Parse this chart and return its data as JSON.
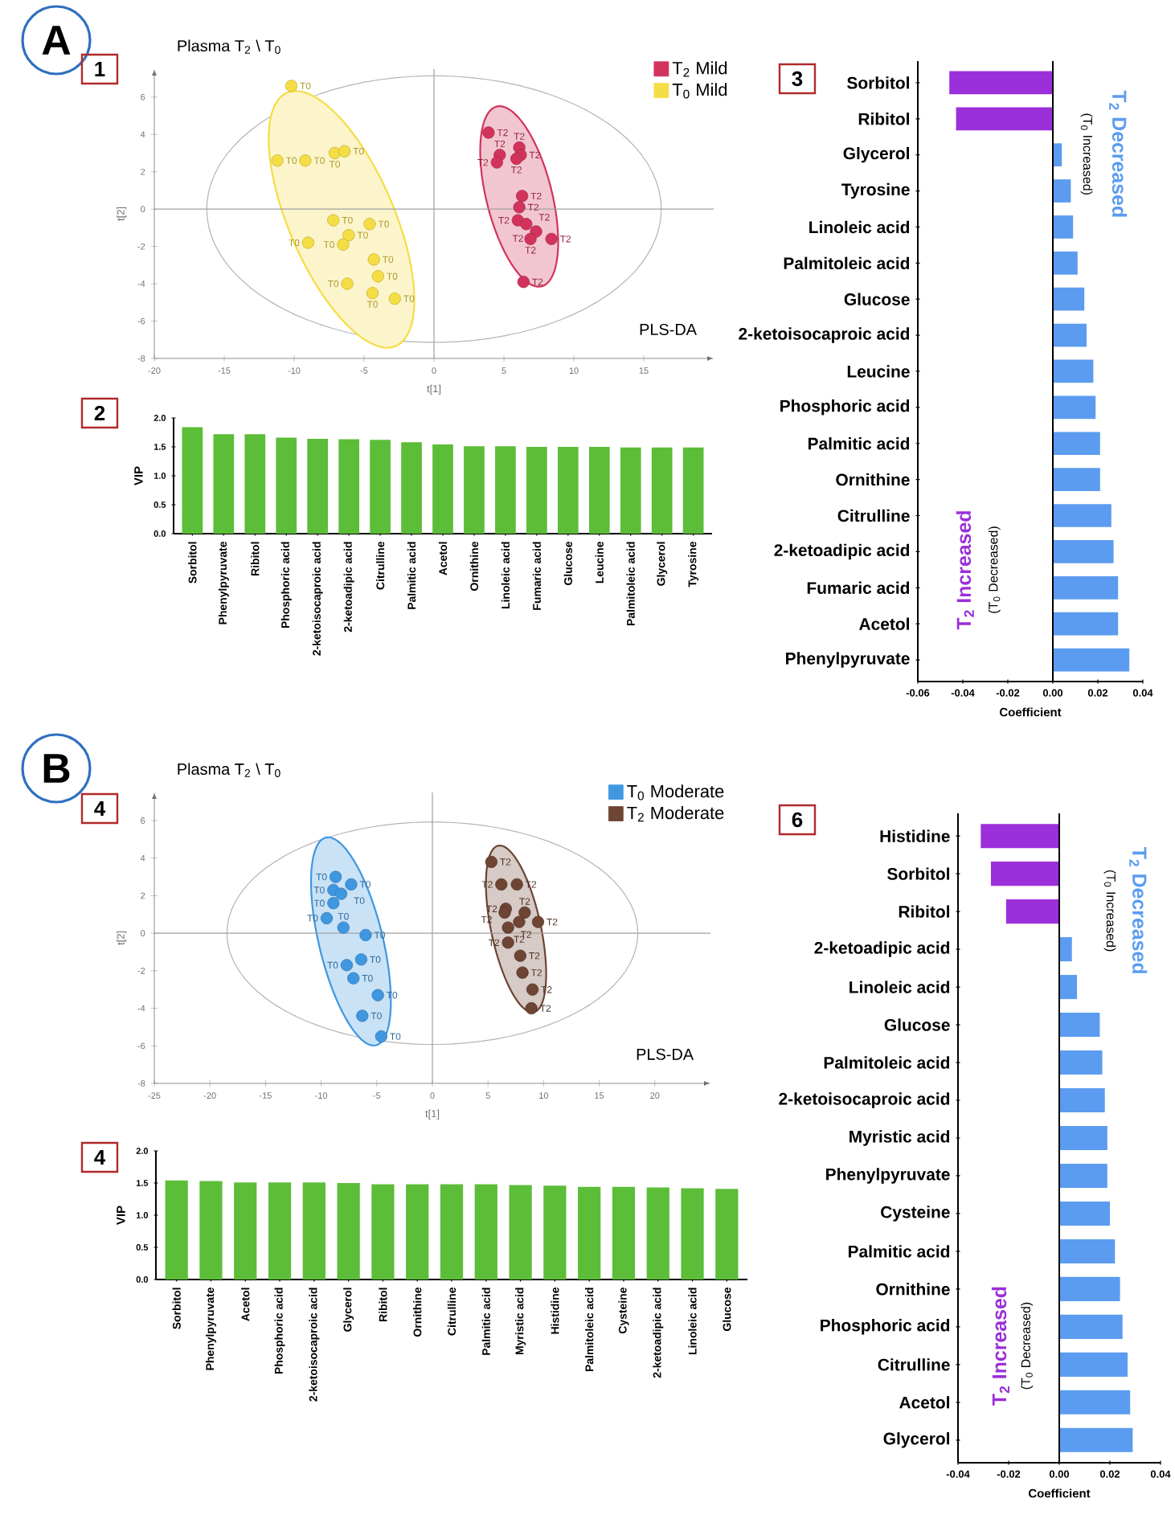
{
  "chart_data": [
    {
      "type": "scatter",
      "title": "Plasma T$_{2}$ \\ T$_{0}$",
      "xlabel": "t[1]",
      "ylabel": "t[2]",
      "xlim": [
        -20,
        20
      ],
      "ylim": [
        -8,
        7.5
      ],
      "xticks": [
        -20,
        -15,
        -10,
        -5,
        0,
        5,
        10,
        15
      ],
      "yticks": [
        -8,
        -6,
        -4,
        -2,
        0,
        2,
        4,
        6
      ],
      "legend": "top right",
      "ref_lines": [
        {
          "axis": "x",
          "value": 0,
          "color": "#a0a0a0"
        },
        {
          "axis": "y",
          "value": 0,
          "color": "#a0a0a0"
        }
      ],
      "annotations": [
        "A",
        "1",
        "PLS-DA"
      ],
      "series": [
        {
          "name": "T$_{2}$ Mild",
          "color": "#d2335c",
          "x": [
            3.9,
            4.7,
            4.5,
            6.1,
            6.2,
            5.9,
            6.3,
            6.1,
            6.0,
            6.6,
            7.3,
            6.9,
            8.4,
            6.4
          ],
          "values": [
            4.1,
            2.9,
            2.5,
            3.3,
            2.9,
            2.7,
            0.7,
            0.1,
            -0.6,
            -0.8,
            -1.2,
            -1.6,
            -1.6,
            -3.9
          ],
          "value_labels": [
            "T2",
            "T2",
            "T2",
            "T2",
            "T2",
            "T2",
            "T2",
            "T2",
            "T2",
            "T2",
            "T2",
            "T2",
            "T2",
            "T2"
          ]
        },
        {
          "name": "T$_{0}$ Mild",
          "color": "#f5dd45",
          "x": [
            -10.2,
            -11.2,
            -9.2,
            -7.1,
            -6.4,
            -7.2,
            -4.6,
            -6.1,
            -6.5,
            -9.0,
            -4.3,
            -4.0,
            -6.2,
            -4.4,
            -2.8
          ],
          "values": [
            6.6,
            2.6,
            2.6,
            3.0,
            3.1,
            -0.6,
            -0.8,
            -1.4,
            -1.9,
            -1.8,
            -2.7,
            -3.6,
            -4.0,
            -4.5,
            -4.8
          ],
          "value_labels": [
            "T0",
            "T0",
            "T0",
            "T0",
            "T0",
            "T0",
            "T0",
            "T0",
            "T0",
            "T0",
            "T0",
            "T0",
            "T0",
            "T0",
            "T0"
          ]
        }
      ]
    },
    {
      "type": "bar",
      "ylabel": "VIP",
      "categories": [
        "Sorbitol",
        "Phenylpyruvate",
        "Ribitol",
        "Phosphoric acid",
        "2-ketoisocaproic acid",
        "2-ketoadipic acid",
        "Citrulline",
        "Palmitic acid",
        "Acetol",
        "Ornithine",
        "Linoleic acid",
        "Fumaric acid",
        "Glucose",
        "Leucine",
        "Palmitoleic acid",
        "Glycerol",
        "Tyrosine"
      ],
      "values": [
        1.84,
        1.72,
        1.72,
        1.66,
        1.64,
        1.63,
        1.62,
        1.58,
        1.54,
        1.51,
        1.51,
        1.5,
        1.5,
        1.5,
        1.49,
        1.49,
        1.49
      ],
      "color": "#5cbd38",
      "ylim": [
        0,
        2
      ],
      "yticks": [
        {
          "value": 0,
          "label": "0.0"
        },
        0.5,
        {
          "value": 1,
          "label": "1.0"
        },
        1.5,
        {
          "value": 2,
          "label": "2.0"
        }
      ],
      "annotations": [
        "2"
      ]
    },
    {
      "type": "bar",
      "orientation": "horizontal",
      "xlabel": "Coefficient",
      "categories": [
        "Sorbitol",
        "Ribitol",
        "Glycerol",
        "Tyrosine",
        "Linoleic acid",
        "Palmitoleic acid",
        "Glucose",
        "2-ketoisocaproic acid",
        "Leucine",
        "Phosphoric acid",
        "Palmitic acid",
        "Ornithine",
        "Citrulline",
        "2-ketoadipic acid",
        "Fumaric acid",
        "Acetol",
        "Phenylpyruvate"
      ],
      "values": [
        -0.046,
        -0.043,
        0.004,
        0.008,
        0.009,
        0.011,
        0.014,
        0.015,
        0.018,
        0.019,
        0.021,
        0.021,
        0.026,
        0.027,
        0.029,
        0.029,
        0.034
      ],
      "colors": [
        "#9b2fd9",
        "#9b2fd9",
        "#5b9cf0",
        "#5b9cf0",
        "#5b9cf0",
        "#5b9cf0",
        "#5b9cf0",
        "#5b9cf0",
        "#5b9cf0",
        "#5b9cf0",
        "#5b9cf0",
        "#5b9cf0",
        "#5b9cf0",
        "#5b9cf0",
        "#5b9cf0",
        "#5b9cf0",
        "#5b9cf0"
      ],
      "xlim": [
        -0.06,
        0.04
      ],
      "xticks": [
        -0.06,
        -0.04,
        -0.02,
        {
          "value": 0,
          "label": "0.00"
        },
        0.02,
        0.04
      ],
      "ref_lines": [
        {
          "axis": "x",
          "value": 0,
          "color": "#000000"
        }
      ],
      "annotations": [
        "3",
        "T$_{2}$ Decreased",
        "(T$_{0}$ Increased)",
        "T$_{2}$ Increased",
        "(T$_{0}$ Decreased)"
      ]
    },
    {
      "type": "scatter",
      "title": "Plasma T$_{2}$ \\ T$_{0}$",
      "xlabel": "t[1]",
      "ylabel": "t[2]",
      "xlim": [
        -25,
        25
      ],
      "ylim": [
        -8,
        7.5
      ],
      "xticks": [
        -25,
        -20,
        -15,
        -10,
        -5,
        0,
        5,
        10,
        15,
        20
      ],
      "yticks": [
        -8,
        -6,
        -4,
        -2,
        0,
        2,
        4,
        6
      ],
      "legend": "top right",
      "ref_lines": [
        {
          "axis": "x",
          "value": 0,
          "color": "#a0a0a0"
        },
        {
          "axis": "y",
          "value": 0,
          "color": "#a0a0a0"
        }
      ],
      "annotations": [
        "B",
        "4",
        "PLS-DA"
      ],
      "series": [
        {
          "name": "T$_{0}$ Moderate",
          "color": "#3f97e0",
          "x": [
            -8.7,
            -7.3,
            -8.9,
            -8.2,
            -8.9,
            -9.5,
            -8.0,
            -6.0,
            -6.4,
            -7.7,
            -7.1,
            -4.9,
            -6.3,
            -4.6
          ],
          "values": [
            3.0,
            2.6,
            2.3,
            2.1,
            1.6,
            0.8,
            0.3,
            -0.1,
            -1.4,
            -1.7,
            -2.4,
            -3.3,
            -4.4,
            -5.5
          ],
          "value_labels": [
            "T0",
            "T0",
            "T0",
            "T0",
            "T0",
            "T0",
            "T0",
            "T0",
            "T0",
            "T0",
            "T0",
            "T0",
            "T0",
            "T0"
          ]
        },
        {
          "name": "T$_{2}$ Moderate",
          "color": "#6e4433",
          "x": [
            5.3,
            6.2,
            7.6,
            6.6,
            6.5,
            8.3,
            6.8,
            7.8,
            9.5,
            6.8,
            7.9,
            8.1,
            9.0,
            8.9
          ],
          "values": [
            3.8,
            2.6,
            2.6,
            1.3,
            1.1,
            1.1,
            0.3,
            0.6,
            0.6,
            -0.5,
            -1.2,
            -2.1,
            -3.0,
            -4.0
          ],
          "value_labels": [
            "T2",
            "T2",
            "T2",
            "T2",
            "T2",
            "T2",
            "T2",
            "T2",
            "T2",
            "T2",
            "T2",
            "T2",
            "T2",
            "T2"
          ]
        }
      ]
    },
    {
      "type": "bar",
      "ylabel": "VIP",
      "categories": [
        "Sorbitol",
        "Phenylpyruvate",
        "Acetol",
        "Phosphoric acid",
        "2-ketoisocaproic acid",
        "Glycerol",
        "Ribitol",
        "Ornithine",
        "Citrulline",
        "Palmitic acid",
        "Myristic acid",
        "Histidine",
        "Palmitoleic acid",
        "Cysteine",
        "2-ketoadipic acid",
        "Linoleic acid",
        "Glucose"
      ],
      "values": [
        1.54,
        1.53,
        1.51,
        1.51,
        1.51,
        1.5,
        1.48,
        1.48,
        1.48,
        1.48,
        1.47,
        1.46,
        1.44,
        1.44,
        1.43,
        1.42,
        1.41
      ],
      "color": "#5cbd38",
      "ylim": [
        0,
        2
      ],
      "yticks": [
        {
          "value": 0,
          "label": "0.0"
        },
        0.5,
        {
          "value": 1,
          "label": "1.0"
        },
        1.5,
        {
          "value": 2,
          "label": "2.0"
        }
      ],
      "annotations": [
        "4"
      ]
    },
    {
      "type": "bar",
      "orientation": "horizontal",
      "xlabel": "Coefficient",
      "categories": [
        "Histidine",
        "Sorbitol",
        "Ribitol",
        "2-ketoadipic acid",
        "Linoleic acid",
        "Glucose",
        "Palmitoleic acid",
        "2-ketoisocaproic acid",
        "Myristic acid",
        "Phenylpyruvate",
        "Cysteine",
        "Palmitic acid",
        "Ornithine",
        "Phosphoric acid",
        "Citrulline",
        "Acetol",
        "Glycerol"
      ],
      "values": [
        -0.031,
        -0.027,
        -0.021,
        0.005,
        0.007,
        0.016,
        0.017,
        0.018,
        0.019,
        0.019,
        0.02,
        0.022,
        0.024,
        0.025,
        0.027,
        0.028,
        0.029
      ],
      "colors": [
        "#9b2fd9",
        "#9b2fd9",
        "#9b2fd9",
        "#5b9cf0",
        "#5b9cf0",
        "#5b9cf0",
        "#5b9cf0",
        "#5b9cf0",
        "#5b9cf0",
        "#5b9cf0",
        "#5b9cf0",
        "#5b9cf0",
        "#5b9cf0",
        "#5b9cf0",
        "#5b9cf0",
        "#5b9cf0",
        "#5b9cf0"
      ],
      "xlim": [
        -0.04,
        0.04
      ],
      "xticks": [
        -0.04,
        -0.02,
        {
          "value": 0,
          "label": "0.00"
        },
        0.02,
        0.04
      ],
      "ref_lines": [
        {
          "axis": "x",
          "value": 0,
          "color": "#000000"
        }
      ],
      "annotations": [
        "6",
        "T$_{2}$ Decreased",
        "(T$_{0}$ Increased)",
        "T$_{2}$ Increased",
        "(T$_{0}$ Decreased)"
      ]
    }
  ]
}
